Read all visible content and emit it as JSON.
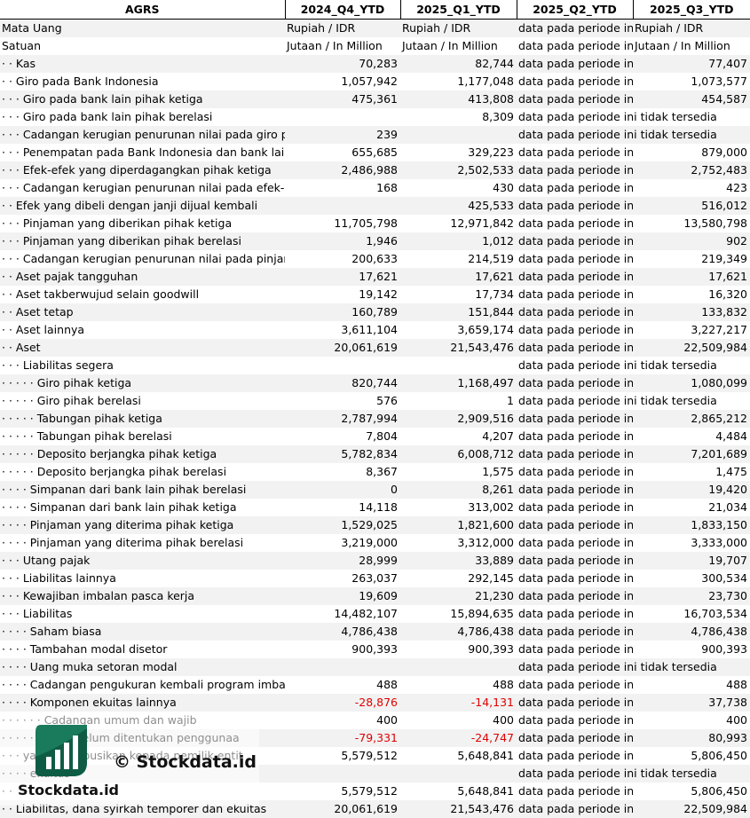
{
  "headers": [
    "AGRS",
    "2024_Q4_YTD",
    "2025_Q1_YTD",
    "2025_Q2_YTD",
    "2025_Q3_YTD"
  ],
  "rows": [
    {
      "label": "Mata Uang",
      "indent": "",
      "v": [
        "Rupiah / IDR",
        "Rupiah / IDR",
        "data pada periode in",
        "Rupiah / IDR"
      ],
      "t": [
        "txt",
        "txt",
        "txt",
        "txt"
      ]
    },
    {
      "label": "Satuan",
      "indent": "",
      "v": [
        "Jutaan / In Million",
        "Jutaan / In Million",
        "data pada periode in",
        "Jutaan / In Million"
      ],
      "t": [
        "txt",
        "txt",
        "txt",
        "txt"
      ]
    },
    {
      "label": "Kas",
      "indent": "· · ",
      "v": [
        "70,283",
        "82,744",
        "data pada periode in",
        "77,407"
      ]
    },
    {
      "label": "Giro pada Bank Indonesia",
      "indent": "· · ",
      "v": [
        "1,057,942",
        "1,177,048",
        "data pada periode in",
        "1,073,577"
      ]
    },
    {
      "label": "Giro pada bank lain pihak ketiga",
      "indent": "· · · ",
      "v": [
        "475,361",
        "413,808",
        "data pada periode in",
        "454,587"
      ]
    },
    {
      "label": "Giro pada bank lain pihak berelasi",
      "indent": "· · · ",
      "v": [
        "",
        "8,309",
        "data pada periode ini tidak tersedia",
        ""
      ],
      "span": true
    },
    {
      "label": "Cadangan kerugian penurunan nilai pada giro pa",
      "indent": "· · · ",
      "v": [
        "239",
        "",
        "data pada periode ini tidak tersedia",
        ""
      ],
      "span": true
    },
    {
      "label": "Penempatan pada Bank Indonesia dan bank lain",
      "indent": "· · · ",
      "v": [
        "655,685",
        "329,223",
        "data pada periode in",
        "879,000"
      ]
    },
    {
      "label": "Efek-efek yang diperdagangkan pihak ketiga",
      "indent": "· · · ",
      "v": [
        "2,486,988",
        "2,502,533",
        "data pada periode in",
        "2,752,483"
      ]
    },
    {
      "label": "Cadangan kerugian penurunan nilai pada efek-e",
      "indent": "· · · ",
      "v": [
        "168",
        "430",
        "data pada periode in",
        "423"
      ]
    },
    {
      "label": "Efek yang dibeli dengan janji dijual kembali",
      "indent": "· · ",
      "v": [
        "",
        "425,533",
        "data pada periode in",
        "516,012"
      ]
    },
    {
      "label": "Pinjaman yang diberikan pihak ketiga",
      "indent": "· · · ",
      "v": [
        "11,705,798",
        "12,971,842",
        "data pada periode in",
        "13,580,798"
      ]
    },
    {
      "label": "Pinjaman yang diberikan pihak berelasi",
      "indent": "· · · ",
      "v": [
        "1,946",
        "1,012",
        "data pada periode in",
        "902"
      ]
    },
    {
      "label": "Cadangan kerugian penurunan nilai pada pinjam",
      "indent": "· · · ",
      "v": [
        "200,633",
        "214,519",
        "data pada periode in",
        "219,349"
      ]
    },
    {
      "label": "Aset pajak tangguhan",
      "indent": "· · ",
      "v": [
        "17,621",
        "17,621",
        "data pada periode in",
        "17,621"
      ]
    },
    {
      "label": "Aset takberwujud selain goodwill",
      "indent": "· · ",
      "v": [
        "19,142",
        "17,734",
        "data pada periode in",
        "16,320"
      ]
    },
    {
      "label": "Aset tetap",
      "indent": "· · ",
      "v": [
        "160,789",
        "151,844",
        "data pada periode in",
        "133,832"
      ]
    },
    {
      "label": "Aset lainnya",
      "indent": "· · ",
      "v": [
        "3,611,104",
        "3,659,174",
        "data pada periode in",
        "3,227,217"
      ]
    },
    {
      "label": "Aset",
      "indent": "· · ",
      "v": [
        "20,061,619",
        "21,543,476",
        "data pada periode in",
        "22,509,984"
      ]
    },
    {
      "label": "Liabilitas segera",
      "indent": "· · · ",
      "v": [
        "",
        "",
        "data pada periode ini tidak tersedia",
        ""
      ],
      "span": true
    },
    {
      "label": "Giro pihak ketiga",
      "indent": "· · · · · ",
      "v": [
        "820,744",
        "1,168,497",
        "data pada periode in",
        "1,080,099"
      ]
    },
    {
      "label": "Giro pihak berelasi",
      "indent": "· · · · · ",
      "v": [
        "576",
        "1",
        "data pada periode ini tidak tersedia",
        ""
      ],
      "span": true
    },
    {
      "label": "Tabungan pihak ketiga",
      "indent": "· · · · · ",
      "v": [
        "2,787,994",
        "2,909,516",
        "data pada periode in",
        "2,865,212"
      ]
    },
    {
      "label": "Tabungan pihak berelasi",
      "indent": "· · · · · ",
      "v": [
        "7,804",
        "4,207",
        "data pada periode in",
        "4,484"
      ]
    },
    {
      "label": "Deposito berjangka pihak ketiga",
      "indent": "· · · · · ",
      "v": [
        "5,782,834",
        "6,008,712",
        "data pada periode in",
        "7,201,689"
      ]
    },
    {
      "label": "Deposito berjangka pihak berelasi",
      "indent": "· · · · · ",
      "v": [
        "8,367",
        "1,575",
        "data pada periode in",
        "1,475"
      ]
    },
    {
      "label": "Simpanan dari bank lain pihak berelasi",
      "indent": "· · · · ",
      "v": [
        "0",
        "8,261",
        "data pada periode in",
        "19,420"
      ]
    },
    {
      "label": "Simpanan dari bank lain pihak ketiga",
      "indent": "· · · · ",
      "v": [
        "14,118",
        "313,002",
        "data pada periode in",
        "21,034"
      ]
    },
    {
      "label": "Pinjaman yang diterima pihak ketiga",
      "indent": "· · · · ",
      "v": [
        "1,529,025",
        "1,821,600",
        "data pada periode in",
        "1,833,150"
      ]
    },
    {
      "label": "Pinjaman yang diterima pihak berelasi",
      "indent": "· · · · ",
      "v": [
        "3,219,000",
        "3,312,000",
        "data pada periode in",
        "3,333,000"
      ]
    },
    {
      "label": "Utang pajak",
      "indent": "· · · ",
      "v": [
        "28,999",
        "33,889",
        "data pada periode in",
        "19,707"
      ]
    },
    {
      "label": "Liabilitas lainnya",
      "indent": "· · · ",
      "v": [
        "263,037",
        "292,145",
        "data pada periode in",
        "300,534"
      ]
    },
    {
      "label": "Kewajiban imbalan pasca kerja",
      "indent": "· · · ",
      "v": [
        "19,609",
        "21,230",
        "data pada periode in",
        "23,730"
      ]
    },
    {
      "label": "Liabilitas",
      "indent": "· · · ",
      "v": [
        "14,482,107",
        "15,894,635",
        "data pada periode in",
        "16,703,534"
      ]
    },
    {
      "label": "Saham biasa",
      "indent": "· · · · ",
      "v": [
        "4,786,438",
        "4,786,438",
        "data pada periode in",
        "4,786,438"
      ]
    },
    {
      "label": "Tambahan modal disetor",
      "indent": "· · · · ",
      "v": [
        "900,393",
        "900,393",
        "data pada periode in",
        "900,393"
      ]
    },
    {
      "label": "Uang muka setoran modal",
      "indent": "· · · · ",
      "v": [
        "",
        "",
        "data pada periode ini tidak tersedia",
        ""
      ],
      "span": true
    },
    {
      "label": "Cadangan pengukuran kembali program imbala",
      "indent": "· · · · ",
      "v": [
        "488",
        "488",
        "data pada periode in",
        "488"
      ]
    },
    {
      "label": "Komponen ekuitas lainnya",
      "indent": "· · · · ",
      "v": [
        "-28,876",
        "-14,131",
        "data pada periode in",
        "37,738"
      ],
      "neg": [
        true,
        true,
        false,
        false
      ]
    },
    {
      "label": "Cadangan umum dan wajib",
      "indent": "· · · · · · ",
      "v": [
        "400",
        "400",
        "data pada periode in",
        "400"
      ]
    },
    {
      "label": "yang belum ditentukan penggunaa",
      "indent": "· · · · · · ",
      "v": [
        "-79,331",
        "-24,747",
        "data pada periode in",
        "80,993"
      ],
      "neg": [
        true,
        true,
        false,
        false
      ]
    },
    {
      "label": "yang diatribusikan kepada pemilik entit",
      "indent": "· · · ",
      "v": [
        "5,579,512",
        "5,648,841",
        "data pada periode in",
        "5,806,450"
      ]
    },
    {
      "label": "ekuitas",
      "indent": "· · · · ",
      "v": [
        "",
        "",
        "data pada periode ini tidak tersedia",
        ""
      ],
      "span": true
    },
    {
      "label": "",
      "indent": "· · ",
      "v": [
        "5,579,512",
        "5,648,841",
        "data pada periode in",
        "5,806,450"
      ]
    },
    {
      "label": "Liabilitas, dana syirkah temporer dan ekuitas",
      "indent": "· · ",
      "v": [
        "20,061,619",
        "21,543,476",
        "data pada periode in",
        "22,509,984"
      ]
    }
  ],
  "watermark": {
    "copyright": "© Stockdata.id",
    "brand": "Stockdata.id",
    "colors": {
      "logo_green": "#1a7a5c",
      "logo_dark": "#0f5c45"
    }
  }
}
